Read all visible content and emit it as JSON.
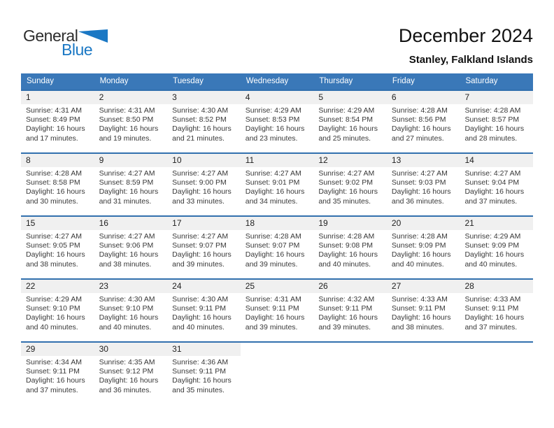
{
  "logo": {
    "general": "General",
    "blue": "Blue"
  },
  "header": {
    "title": "December 2024",
    "subtitle": "Stanley, Falkland Islands"
  },
  "colors": {
    "header_bar_blue": "#3A78B8",
    "row_separator_blue": "#3270AE",
    "number_band_gray": "#F0F0F0",
    "logo_blue": "#1B78C4",
    "header_text": "#FFFFFF"
  },
  "calendar": {
    "day_headers": [
      "Sunday",
      "Monday",
      "Tuesday",
      "Wednesday",
      "Thursday",
      "Friday",
      "Saturday"
    ],
    "weeks": [
      [
        {
          "day": "1",
          "lines": [
            "Sunrise: 4:31 AM",
            "Sunset: 8:49 PM",
            "Daylight: 16 hours",
            "and 17 minutes."
          ]
        },
        {
          "day": "2",
          "lines": [
            "Sunrise: 4:31 AM",
            "Sunset: 8:50 PM",
            "Daylight: 16 hours",
            "and 19 minutes."
          ]
        },
        {
          "day": "3",
          "lines": [
            "Sunrise: 4:30 AM",
            "Sunset: 8:52 PM",
            "Daylight: 16 hours",
            "and 21 minutes."
          ]
        },
        {
          "day": "4",
          "lines": [
            "Sunrise: 4:29 AM",
            "Sunset: 8:53 PM",
            "Daylight: 16 hours",
            "and 23 minutes."
          ]
        },
        {
          "day": "5",
          "lines": [
            "Sunrise: 4:29 AM",
            "Sunset: 8:54 PM",
            "Daylight: 16 hours",
            "and 25 minutes."
          ]
        },
        {
          "day": "6",
          "lines": [
            "Sunrise: 4:28 AM",
            "Sunset: 8:56 PM",
            "Daylight: 16 hours",
            "and 27 minutes."
          ]
        },
        {
          "day": "7",
          "lines": [
            "Sunrise: 4:28 AM",
            "Sunset: 8:57 PM",
            "Daylight: 16 hours",
            "and 28 minutes."
          ]
        }
      ],
      [
        {
          "day": "8",
          "lines": [
            "Sunrise: 4:28 AM",
            "Sunset: 8:58 PM",
            "Daylight: 16 hours",
            "and 30 minutes."
          ]
        },
        {
          "day": "9",
          "lines": [
            "Sunrise: 4:27 AM",
            "Sunset: 8:59 PM",
            "Daylight: 16 hours",
            "and 31 minutes."
          ]
        },
        {
          "day": "10",
          "lines": [
            "Sunrise: 4:27 AM",
            "Sunset: 9:00 PM",
            "Daylight: 16 hours",
            "and 33 minutes."
          ]
        },
        {
          "day": "11",
          "lines": [
            "Sunrise: 4:27 AM",
            "Sunset: 9:01 PM",
            "Daylight: 16 hours",
            "and 34 minutes."
          ]
        },
        {
          "day": "12",
          "lines": [
            "Sunrise: 4:27 AM",
            "Sunset: 9:02 PM",
            "Daylight: 16 hours",
            "and 35 minutes."
          ]
        },
        {
          "day": "13",
          "lines": [
            "Sunrise: 4:27 AM",
            "Sunset: 9:03 PM",
            "Daylight: 16 hours",
            "and 36 minutes."
          ]
        },
        {
          "day": "14",
          "lines": [
            "Sunrise: 4:27 AM",
            "Sunset: 9:04 PM",
            "Daylight: 16 hours",
            "and 37 minutes."
          ]
        }
      ],
      [
        {
          "day": "15",
          "lines": [
            "Sunrise: 4:27 AM",
            "Sunset: 9:05 PM",
            "Daylight: 16 hours",
            "and 38 minutes."
          ]
        },
        {
          "day": "16",
          "lines": [
            "Sunrise: 4:27 AM",
            "Sunset: 9:06 PM",
            "Daylight: 16 hours",
            "and 38 minutes."
          ]
        },
        {
          "day": "17",
          "lines": [
            "Sunrise: 4:27 AM",
            "Sunset: 9:07 PM",
            "Daylight: 16 hours",
            "and 39 minutes."
          ]
        },
        {
          "day": "18",
          "lines": [
            "Sunrise: 4:28 AM",
            "Sunset: 9:07 PM",
            "Daylight: 16 hours",
            "and 39 minutes."
          ]
        },
        {
          "day": "19",
          "lines": [
            "Sunrise: 4:28 AM",
            "Sunset: 9:08 PM",
            "Daylight: 16 hours",
            "and 40 minutes."
          ]
        },
        {
          "day": "20",
          "lines": [
            "Sunrise: 4:28 AM",
            "Sunset: 9:09 PM",
            "Daylight: 16 hours",
            "and 40 minutes."
          ]
        },
        {
          "day": "21",
          "lines": [
            "Sunrise: 4:29 AM",
            "Sunset: 9:09 PM",
            "Daylight: 16 hours",
            "and 40 minutes."
          ]
        }
      ],
      [
        {
          "day": "22",
          "lines": [
            "Sunrise: 4:29 AM",
            "Sunset: 9:10 PM",
            "Daylight: 16 hours",
            "and 40 minutes."
          ]
        },
        {
          "day": "23",
          "lines": [
            "Sunrise: 4:30 AM",
            "Sunset: 9:10 PM",
            "Daylight: 16 hours",
            "and 40 minutes."
          ]
        },
        {
          "day": "24",
          "lines": [
            "Sunrise: 4:30 AM",
            "Sunset: 9:11 PM",
            "Daylight: 16 hours",
            "and 40 minutes."
          ]
        },
        {
          "day": "25",
          "lines": [
            "Sunrise: 4:31 AM",
            "Sunset: 9:11 PM",
            "Daylight: 16 hours",
            "and 39 minutes."
          ]
        },
        {
          "day": "26",
          "lines": [
            "Sunrise: 4:32 AM",
            "Sunset: 9:11 PM",
            "Daylight: 16 hours",
            "and 39 minutes."
          ]
        },
        {
          "day": "27",
          "lines": [
            "Sunrise: 4:33 AM",
            "Sunset: 9:11 PM",
            "Daylight: 16 hours",
            "and 38 minutes."
          ]
        },
        {
          "day": "28",
          "lines": [
            "Sunrise: 4:33 AM",
            "Sunset: 9:11 PM",
            "Daylight: 16 hours",
            "and 37 minutes."
          ]
        }
      ],
      [
        {
          "day": "29",
          "lines": [
            "Sunrise: 4:34 AM",
            "Sunset: 9:11 PM",
            "Daylight: 16 hours",
            "and 37 minutes."
          ]
        },
        {
          "day": "30",
          "lines": [
            "Sunrise: 4:35 AM",
            "Sunset: 9:12 PM",
            "Daylight: 16 hours",
            "and 36 minutes."
          ]
        },
        {
          "day": "31",
          "lines": [
            "Sunrise: 4:36 AM",
            "Sunset: 9:11 PM",
            "Daylight: 16 hours",
            "and 35 minutes."
          ]
        },
        null,
        null,
        null,
        null
      ]
    ]
  }
}
